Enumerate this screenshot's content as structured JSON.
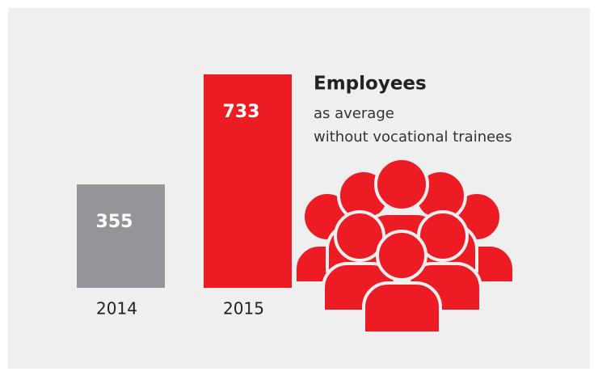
{
  "chart_data": {
    "type": "bar",
    "title": "Employees",
    "subtitle": [
      "as average",
      "without vocational trainees"
    ],
    "categories": [
      "2014",
      "2015"
    ],
    "values": [
      355,
      733
    ],
    "colors": [
      "#939598",
      "#ed1c24"
    ],
    "icon_color": "#ed1c24"
  }
}
